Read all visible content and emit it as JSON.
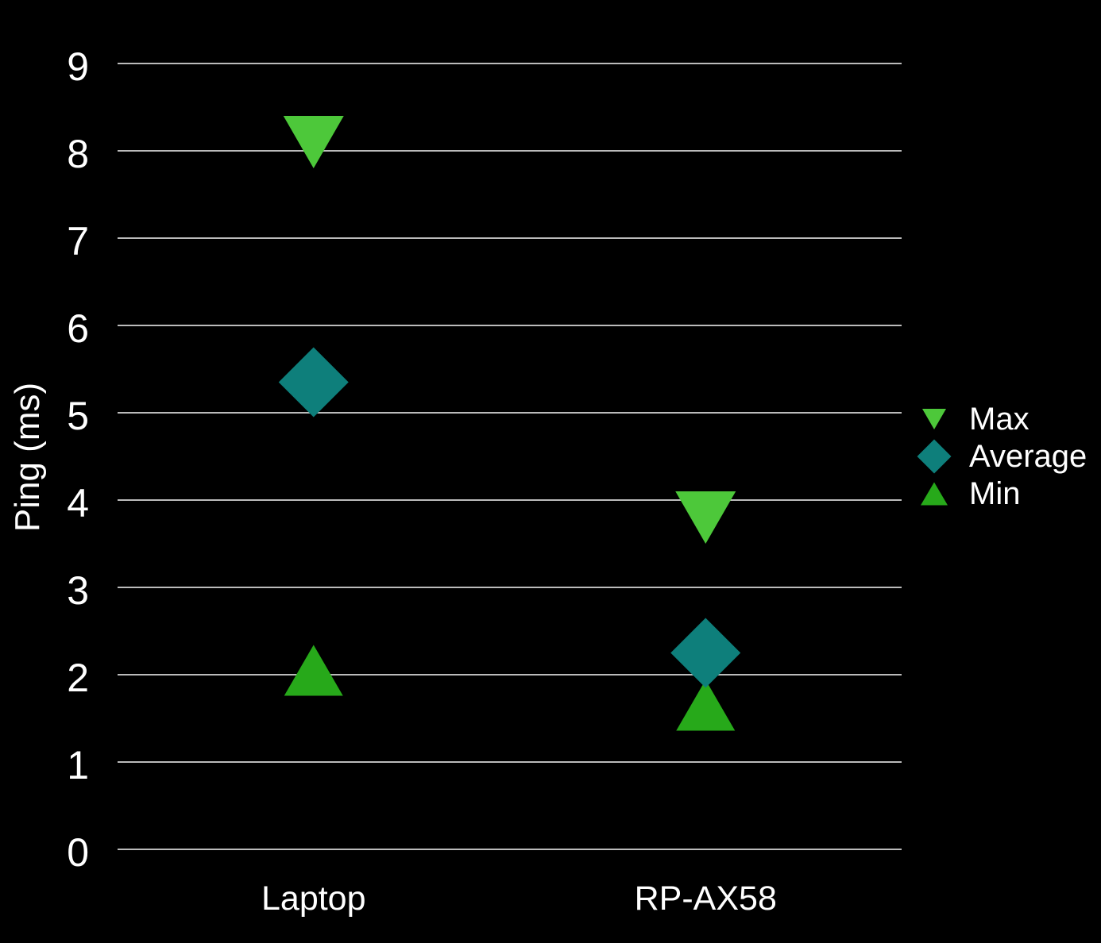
{
  "chart_data": {
    "type": "scatter",
    "title": "",
    "xlabel": "",
    "ylabel": "Ping (ms)",
    "categories": [
      "Laptop",
      "RP-AX58"
    ],
    "series": [
      {
        "name": "Max",
        "marker": "triangle-down",
        "color": "#4DC83A",
        "values": [
          8.1,
          3.8
        ]
      },
      {
        "name": "Average",
        "marker": "diamond",
        "color": "#0E7F7B",
        "values": [
          5.35,
          2.25
        ]
      },
      {
        "name": "Min",
        "marker": "triangle-up",
        "color": "#27A91A",
        "values": [
          2.05,
          1.65
        ]
      }
    ],
    "ylim": [
      0,
      9
    ],
    "yticks": [
      0,
      1,
      2,
      3,
      4,
      5,
      6,
      7,
      8,
      9
    ],
    "grid": true,
    "legend_position": "right"
  },
  "colors": {
    "background": "#000000",
    "text": "#FFFFFF",
    "gridline": "#BBBBBB"
  }
}
